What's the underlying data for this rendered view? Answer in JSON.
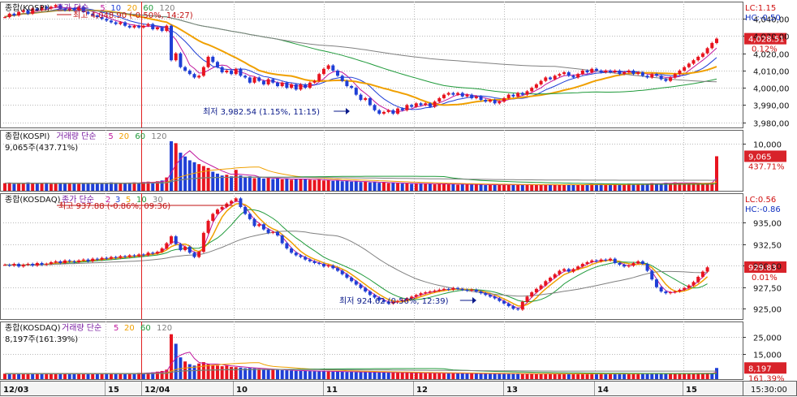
{
  "header": {
    "time_label": "15:30:00"
  },
  "colors": {
    "up": "#e8141f",
    "down": "#1f3fd6",
    "ma5": "#c0179d",
    "ma10": "#1f3fd6",
    "ma20": "#f0a000",
    "ma60": "#1f9a3a",
    "ma120": "#808080",
    "grid": "#b8b8b8",
    "panel_border": "#606060",
    "price_tag": "#d8232a"
  },
  "x_axis": {
    "labels": [
      "12/03",
      "15",
      "12/04",
      "10",
      "11",
      "12",
      "13",
      "14",
      "15"
    ]
  },
  "chart_data": [
    {
      "type": "candlestick",
      "name": "kospi-price",
      "legend": {
        "prefix": "종합(KOSPI)",
        "ma_label": "종가 단순",
        "periods": [
          "5",
          "10",
          "20",
          "60",
          "120"
        ]
      },
      "high_note": "최고 4,048.90 (-0.50%, 14:27)",
      "low_note": "최저 3,982.54 (1.15%, 11:15)",
      "y_ticks": [
        "4,040,00",
        "4,030,00",
        "4,020,00",
        "4,010,00",
        "4,000,00",
        "3,990,00",
        "3,980,00"
      ],
      "y_tick_values": [
        4040,
        4030,
        4020,
        4010,
        4000,
        3990,
        3980
      ],
      "ylim": [
        3977,
        4050
      ],
      "lc_label": "LC:1.15",
      "hc_label": "HC:-0.50",
      "last_price_label": "4,028.51",
      "last_change_label": "0.12%",
      "last_value": 4028.51,
      "closes": [
        4041,
        4043,
        4042,
        4044,
        4045,
        4043,
        4046,
        4045,
        4047,
        4046,
        4047,
        4048,
        4046,
        4045,
        4046,
        4045,
        4047,
        4044,
        4043,
        4042,
        4041,
        4040,
        4039,
        4038,
        4037,
        4038,
        4036,
        4035,
        4036,
        4035,
        4036,
        4037,
        4034,
        4035,
        4033,
        4036,
        4016,
        4020,
        4012,
        4010,
        4008,
        4006,
        4007,
        4012,
        4018,
        4015,
        4012,
        4009,
        4010,
        4008,
        4011,
        4007,
        4006,
        4003,
        4006,
        4004,
        4002,
        4005,
        4003,
        4001,
        4003,
        4000,
        4002,
        3999,
        4002,
        4000,
        4003,
        4004,
        4008,
        4011,
        4013,
        4010,
        4007,
        4004,
        4001,
        4000,
        3996,
        3993,
        3994,
        3990,
        3987,
        3985,
        3986,
        3987,
        3985,
        3988,
        3987,
        3990,
        3989,
        3991,
        3990,
        3991,
        3989,
        3992,
        3994,
        3996,
        3997,
        3996,
        3997,
        3995,
        3996,
        3994,
        3995,
        3993,
        3992,
        3993,
        3991,
        3992,
        3994,
        3996,
        3995,
        3997,
        3996,
        3998,
        4000,
        4002,
        4004,
        4006,
        4005,
        4007,
        4008,
        4009,
        4007,
        4006,
        4008,
        4010,
        4009,
        4011,
        4010,
        4009,
        4010,
        4009,
        4010,
        4008,
        4009,
        4010,
        4008,
        4009,
        4007,
        4006,
        4008,
        4007,
        4005,
        4004,
        4006,
        4008,
        4010,
        4012,
        4014,
        4016,
        4018,
        4020,
        4023,
        4026,
        4028.5
      ]
    },
    {
      "type": "bar",
      "name": "kospi-volume",
      "legend": {
        "prefix": "종합(KOSPI)",
        "ma_label": "거래량 단순",
        "periods": [
          "5",
          "20",
          "60",
          "120"
        ]
      },
      "current_note": "9,065주(437.71%)",
      "y_ticks": [
        "10,000"
      ],
      "y_tick_values": [
        10000
      ],
      "ylim": [
        0,
        13000
      ],
      "last_value_label": "9,065",
      "last_change_label": "437.71%",
      "last_value": 9065,
      "values": [
        2000,
        2100,
        1800,
        2000,
        1900,
        2200,
        2000,
        1900,
        2100,
        2000,
        1800,
        1900,
        2000,
        2100,
        1900,
        2000,
        1800,
        2100,
        2000,
        1900,
        2000,
        2100,
        1900,
        2200,
        2000,
        1900,
        2100,
        2000,
        2200,
        2100,
        2300,
        2400,
        2200,
        2500,
        2700,
        3500,
        13000,
        12500,
        10000,
        9000,
        8000,
        7500,
        7000,
        6500,
        6000,
        5000,
        4500,
        4000,
        4200,
        3800,
        5500,
        4000,
        3500,
        3800,
        3300,
        3600,
        3200,
        3400,
        3100,
        3300,
        3000,
        3200,
        2900,
        3000,
        3200,
        3100,
        2900,
        2800,
        3000,
        2700,
        2800,
        2600,
        2700,
        2500,
        2600,
        2400,
        2500,
        2300,
        2400,
        2200,
        2300,
        2100,
        2200,
        2000,
        2100,
        2000,
        1900,
        2000,
        1800,
        1900,
        2000,
        1800,
        1900,
        1700,
        1800,
        1900,
        1700,
        1800,
        1600,
        1700,
        1800,
        1600,
        1700,
        1600,
        1500,
        1600,
        1700,
        1600,
        1500,
        1600,
        1700,
        1600,
        1500,
        1700,
        1600,
        1500,
        1600,
        1500,
        1700,
        1600,
        1500,
        1600,
        1700,
        1600,
        1500,
        1600,
        1700,
        1800,
        1700,
        1600,
        1500,
        1700,
        1600,
        1800,
        1700,
        1900,
        1800,
        1700,
        1800,
        1900,
        2000,
        1900,
        1800,
        2100,
        2000,
        2200,
        2100,
        1900,
        2000,
        2100,
        2000,
        1900,
        2000,
        2200,
        9065
      ]
    },
    {
      "type": "candlestick",
      "name": "kosdaq-price",
      "legend": {
        "prefix": "종합(KOSDAQ)",
        "ma_label": "종가 단순",
        "periods": [
          "3",
          "5",
          "10",
          "30"
        ],
        "lead": "2"
      },
      "high_note": "최고 937.88 (-0.86%, 09:36)",
      "low_note": "최저 924.62 (0.56%, 12:39)",
      "y_ticks": [
        "935,00",
        "932,50",
        "930,00",
        "927,50",
        "925,00"
      ],
      "y_tick_values": [
        935,
        932.5,
        930,
        927.5,
        925
      ],
      "ylim": [
        923.8,
        938.4
      ],
      "lc_label": "LC:0.56",
      "hc_label": "HC:-0.86",
      "last_price_label": "929.83",
      "last_change_label": "0.01%",
      "last_value": 929.83,
      "closes": [
        930.1,
        930.0,
        930.2,
        929.9,
        930.1,
        930.2,
        930.0,
        930.3,
        930.1,
        930.2,
        930.4,
        930.5,
        930.3,
        930.6,
        930.5,
        930.4,
        930.6,
        930.7,
        930.5,
        930.8,
        930.7,
        930.9,
        930.8,
        931.0,
        930.9,
        931.1,
        931.0,
        931.2,
        931.1,
        931.3,
        931.2,
        931.5,
        931.4,
        931.6,
        932.0,
        932.6,
        933.4,
        932.5,
        931.8,
        932.2,
        931.5,
        931.0,
        931.6,
        933.8,
        935.2,
        936.0,
        936.5,
        936.8,
        937.2,
        937.5,
        937.8,
        936.8,
        936.0,
        935.4,
        934.6,
        934.8,
        934.2,
        933.8,
        933.9,
        933.5,
        932.6,
        932.0,
        931.5,
        931.2,
        931.0,
        930.7,
        930.5,
        930.3,
        930.2,
        929.9,
        930.0,
        929.7,
        929.4,
        929.0,
        928.6,
        928.2,
        927.8,
        927.4,
        927.0,
        926.6,
        926.3,
        926.0,
        925.8,
        925.6,
        925.8,
        925.9,
        926.0,
        926.2,
        926.4,
        926.6,
        926.8,
        926.9,
        927.0,
        927.1,
        927.2,
        927.3,
        927.2,
        927.4,
        927.3,
        927.2,
        927.1,
        927.2,
        927.0,
        926.8,
        926.6,
        926.4,
        926.2,
        925.9,
        925.6,
        925.3,
        925.0,
        924.9,
        925.8,
        926.4,
        926.9,
        927.3,
        927.7,
        928.2,
        928.6,
        929.0,
        929.4,
        929.6,
        929.3,
        929.6,
        929.9,
        930.2,
        930.4,
        930.6,
        930.5,
        930.7,
        930.6,
        930.8,
        930.3,
        930.1,
        929.9,
        930.0,
        930.3,
        930.5,
        930.2,
        929.4,
        928.4,
        927.5,
        927.0,
        926.8,
        926.9,
        927.0,
        927.2,
        927.4,
        927.7,
        928.1,
        928.7,
        929.3,
        929.8
      ]
    },
    {
      "type": "bar",
      "name": "kosdaq-volume",
      "legend": {
        "prefix": "종합(KOSDAQ)",
        "ma_label": "거래량 단순",
        "periods": [
          "5",
          "20",
          "60",
          "120"
        ]
      },
      "current_note": "8,197주(161.39%)",
      "y_ticks": [
        "25,000",
        "15,000"
      ],
      "y_tick_values": [
        25000,
        15000
      ],
      "ylim": [
        0,
        34000
      ],
      "last_value_label": "8,197",
      "last_change_label": "161.39%",
      "last_value": 8197,
      "values": [
        4000,
        4200,
        3800,
        4100,
        3900,
        4300,
        4000,
        4100,
        3900,
        4200,
        3800,
        4000,
        4100,
        3900,
        4200,
        4000,
        3800,
        4100,
        3900,
        4000,
        4200,
        4100,
        3900,
        4300,
        4000,
        4100,
        3900,
        4200,
        4400,
        4600,
        4500,
        4800,
        5000,
        5500,
        6000,
        7000,
        33000,
        26000,
        16000,
        13000,
        11000,
        10000,
        11500,
        12500,
        11000,
        10500,
        10000,
        9500,
        10000,
        9000,
        8800,
        8500,
        8000,
        8200,
        7900,
        7600,
        7400,
        7200,
        7000,
        6800,
        6600,
        6500,
        6300,
        6100,
        6000,
        6200,
        5900,
        5800,
        5700,
        5900,
        5600,
        5500,
        5700,
        5400,
        5300,
        5500,
        5200,
        5100,
        5300,
        5000,
        5100,
        4900,
        5000,
        4800,
        4900,
        4700,
        4800,
        4600,
        4700,
        4500,
        4600,
        4400,
        4500,
        4300,
        4400,
        4500,
        4300,
        4400,
        4200,
        4300,
        4100,
        4200,
        4000,
        4100,
        4200,
        4000,
        4100,
        3900,
        4000,
        4100,
        3900,
        4000,
        3800,
        3900,
        4000,
        3800,
        3900,
        4000,
        3900,
        3800,
        3900,
        4000,
        3800,
        3900,
        4000,
        4100,
        3900,
        4000,
        3800,
        3900,
        4100,
        4000,
        3800,
        3900,
        4000,
        4200,
        4100,
        4000,
        4300,
        4200,
        4100,
        4000,
        4200,
        4300,
        4100,
        4000,
        4200,
        4100,
        4300,
        4200,
        4400,
        4300,
        4200,
        4300,
        8197
      ]
    }
  ]
}
